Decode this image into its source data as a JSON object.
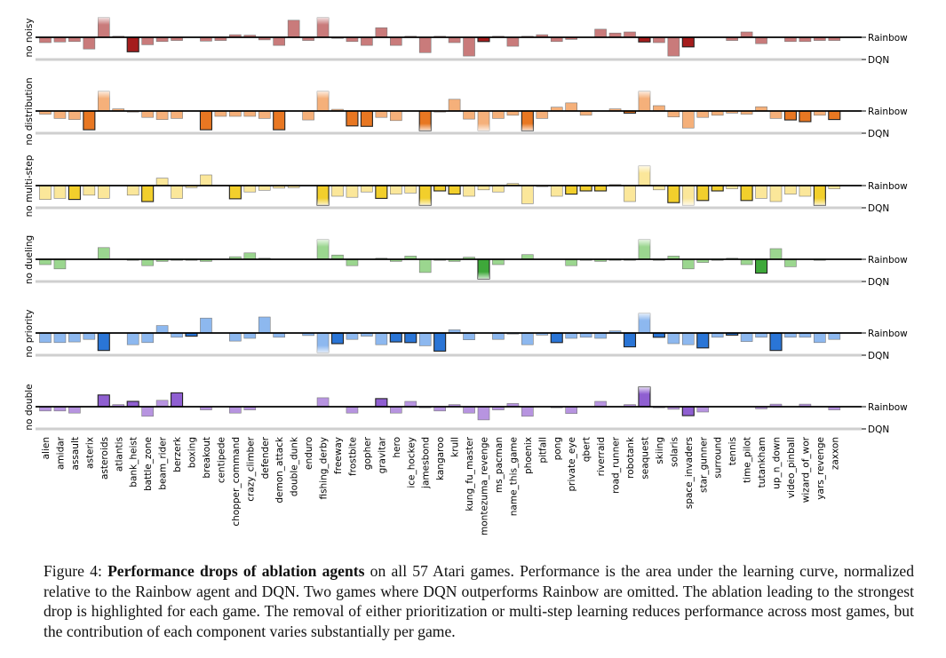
{
  "chart_data": {
    "type": "bar",
    "ref_top": "Rainbow",
    "ref_bottom": "DQN",
    "categories": [
      "alien",
      "amidar",
      "assault",
      "asterix",
      "asteroids",
      "atlantis",
      "bank_heist",
      "battle_zone",
      "beam_rider",
      "berzerk",
      "boxing",
      "breakout",
      "centipede",
      "chopper_command",
      "crazy_climber",
      "defender",
      "demon_attack",
      "double_dunk",
      "enduro",
      "fishing_derby",
      "freeway",
      "frostbite",
      "gopher",
      "gravitar",
      "hero",
      "ice_hockey",
      "jamesbond",
      "kangaroo",
      "krull",
      "kung_fu_master",
      "montezuma_revenge",
      "ms_pacman",
      "name_this_game",
      "phoenix",
      "pitfall",
      "pong",
      "private_eye",
      "qbert",
      "riverraid",
      "road_runner",
      "robotank",
      "seaquest",
      "skiing",
      "solaris",
      "space_invaders",
      "star_gunner",
      "surround",
      "tennis",
      "time_pilot",
      "tutankham",
      "up_n_down",
      "video_pinball",
      "wizard_of_wor",
      "yars_revenge",
      "zaxxon"
    ],
    "series": [
      {
        "name": "no noisy",
        "color": "#c97b7b",
        "highlight": "#a51d1d",
        "values": [
          -0.25,
          -0.22,
          -0.2,
          -0.55,
          0.92,
          0.05,
          -0.68,
          -0.35,
          -0.2,
          -0.15,
          0,
          -0.18,
          -0.15,
          0.12,
          0.1,
          -0.12,
          -0.38,
          0.8,
          -0.15,
          0.92,
          -0.05,
          -0.2,
          -0.38,
          0.45,
          -0.38,
          0.05,
          -0.72,
          0.05,
          -0.25,
          -0.88,
          -0.2,
          0.05,
          -0.42,
          0.05,
          0.12,
          -0.2,
          -0.1,
          0,
          0.38,
          0.2,
          0.25,
          -0.22,
          -0.25,
          -0.88,
          -0.45,
          0,
          0,
          -0.15,
          0.25,
          -0.3,
          0,
          -0.2,
          -0.2,
          -0.15,
          -0.15
        ],
        "highlighted": [
          "bank_heist",
          "montezuma_revenge",
          "seaquest",
          "space_invaders"
        ]
      },
      {
        "name": "no distribution",
        "color": "#f5b07a",
        "highlight": "#e87722",
        "values": [
          -0.15,
          -0.35,
          -0.4,
          -0.88,
          0.92,
          0.1,
          -0.05,
          -0.3,
          -0.4,
          -0.35,
          0,
          -0.88,
          -0.25,
          -0.25,
          -0.25,
          -0.35,
          -0.88,
          0,
          -0.42,
          0.92,
          0.08,
          -0.7,
          -0.72,
          -0.3,
          -0.45,
          0,
          -0.92,
          -0.05,
          0.55,
          -0.38,
          -0.92,
          -0.35,
          -0.2,
          -0.92,
          -0.35,
          0.18,
          0.38,
          -0.2,
          0,
          0.1,
          -0.1,
          0.92,
          0.25,
          -0.28,
          -0.8,
          -0.3,
          -0.2,
          -0.1,
          -0.15,
          0.2,
          -0.35,
          -0.42,
          -0.5,
          -0.2,
          -0.4
        ],
        "highlighted": [
          "asterix",
          "breakout",
          "demon_attack",
          "frostbite",
          "gopher",
          "jamesbond",
          "phoenix",
          "robotank",
          "video_pinball",
          "wizard_of_wor",
          "zaxxon"
        ]
      },
      {
        "name": "no multi-step",
        "color": "#fbe79a",
        "highlight": "#f2cf2c",
        "values": [
          -0.65,
          -0.6,
          -0.65,
          -0.45,
          -0.6,
          0,
          -0.45,
          -0.75,
          0.35,
          -0.6,
          -0.1,
          0.5,
          0,
          -0.62,
          -0.3,
          -0.22,
          -0.12,
          -0.1,
          0,
          -0.92,
          -0.5,
          -0.55,
          -0.3,
          -0.6,
          -0.4,
          -0.35,
          -0.92,
          -0.25,
          -0.4,
          -0.5,
          -0.2,
          -0.3,
          0.1,
          -0.85,
          -0.05,
          -0.5,
          -0.4,
          -0.25,
          -0.25,
          0.05,
          -0.75,
          0.92,
          -0.2,
          -0.8,
          -0.92,
          -0.7,
          -0.25,
          -0.15,
          -0.7,
          -0.6,
          -0.75,
          -0.4,
          -0.5,
          -0.92,
          -0.15
        ],
        "highlighted": [
          "assault",
          "battle_zone",
          "chopper_command",
          "fishing_derby",
          "gravitar",
          "jamesbond",
          "kangaroo",
          "krull",
          "private_eye",
          "qbert",
          "riverraid",
          "solaris",
          "star_gunner",
          "surround",
          "time_pilot",
          "yars_revenge"
        ]
      },
      {
        "name": "no dueling",
        "color": "#9bd68f",
        "highlight": "#3ea83a",
        "values": [
          -0.25,
          -0.45,
          0,
          0,
          0.55,
          0,
          -0.05,
          -0.3,
          -0.1,
          -0.05,
          -0.05,
          -0.1,
          0,
          0.12,
          0.3,
          0.05,
          0,
          0,
          0,
          0.92,
          0.2,
          -0.3,
          0,
          0.05,
          -0.1,
          0.15,
          -0.62,
          -0.05,
          -0.1,
          0.1,
          -0.92,
          -0.25,
          0,
          0.22,
          0,
          0,
          -0.3,
          -0.05,
          -0.1,
          -0.05,
          -0.05,
          0.92,
          -0.05,
          0.15,
          -0.45,
          -0.15,
          -0.05,
          0.05,
          -0.25,
          -0.65,
          0.5,
          -0.35,
          0,
          -0.05,
          0
        ],
        "highlighted": [
          "montezuma_revenge",
          "tutankham"
        ]
      },
      {
        "name": "no priority",
        "color": "#8db8ef",
        "highlight": "#2a75d6",
        "values": [
          -0.45,
          -0.45,
          -0.42,
          -0.3,
          -0.82,
          0,
          -0.55,
          -0.45,
          0.35,
          -0.2,
          -0.15,
          0.7,
          0,
          -0.38,
          -0.25,
          0.75,
          -0.2,
          0,
          -0.12,
          -0.92,
          -0.5,
          -0.3,
          -0.15,
          -0.55,
          -0.42,
          -0.45,
          -0.6,
          -0.85,
          0.15,
          -0.32,
          0,
          -0.3,
          -0.05,
          -0.55,
          -0.1,
          -0.45,
          -0.25,
          -0.2,
          -0.25,
          0.1,
          -0.65,
          0.92,
          -0.2,
          -0.5,
          -0.55,
          -0.7,
          -0.2,
          -0.1,
          -0.4,
          -0.2,
          -0.82,
          -0.2,
          -0.2,
          -0.45,
          -0.3
        ],
        "highlighted": [
          "asteroids",
          "boxing",
          "freeway",
          "hero",
          "ice_hockey",
          "kangaroo",
          "pong",
          "robotank",
          "skiing",
          "star_gunner",
          "tennis",
          "up_n_down"
        ]
      },
      {
        "name": "no double",
        "color": "#b794e0",
        "highlight": "#8f5fd1",
        "values": [
          -0.2,
          -0.2,
          -0.3,
          0,
          0.55,
          0.1,
          0.25,
          -0.45,
          0.3,
          0.65,
          0,
          -0.15,
          0,
          -0.3,
          -0.15,
          0,
          0,
          0,
          0,
          0.42,
          0,
          -0.3,
          0,
          0.38,
          -0.3,
          0.25,
          -0.05,
          -0.2,
          0.1,
          -0.3,
          -0.62,
          -0.15,
          0.15,
          -0.45,
          0,
          -0.05,
          -0.32,
          0,
          0.25,
          0,
          0.1,
          0.92,
          -0.05,
          -0.12,
          -0.42,
          -0.25,
          0,
          0,
          0,
          -0.1,
          0.12,
          0,
          0.12,
          0,
          -0.15
        ],
        "highlighted": [
          "asteroids",
          "bank_heist",
          "berzerk",
          "gravitar",
          "seaquest",
          "space_invaders"
        ]
      }
    ]
  },
  "caption": {
    "prefix": "Figure 4: ",
    "bold": "Performance drops of ablation agents",
    "text": " on all 57 Atari games. Performance is the area under the learning curve, normalized relative to the Rainbow agent and DQN. Two games where DQN outperforms Rainbow are omitted. The ablation leading to the strongest drop is highlighted for each game. The removal of either prioritization or multi-step learning reduces performance across most games, but the contribution of each component varies substantially per game."
  }
}
